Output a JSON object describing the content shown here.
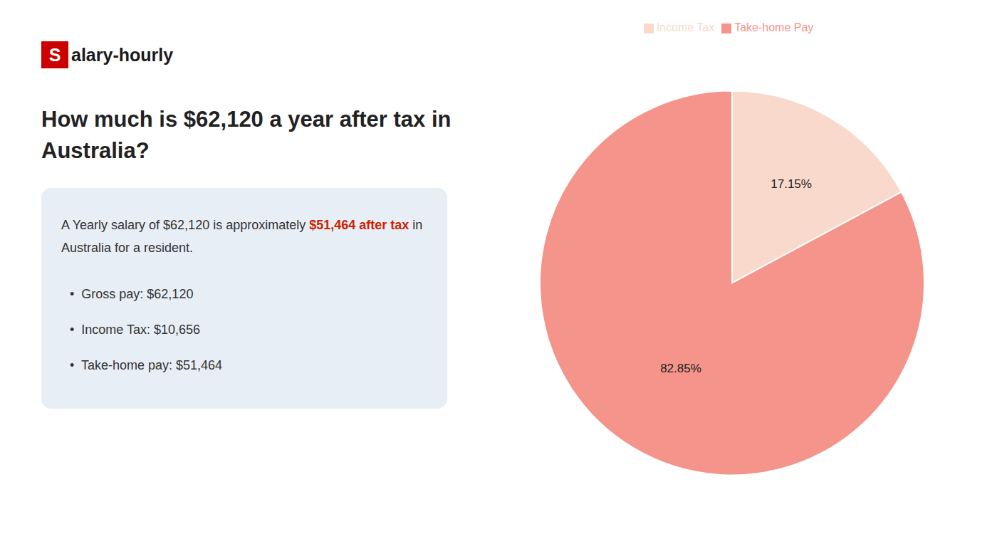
{
  "chart_data": {
    "type": "pie",
    "title": [
      "How much is $62,120 a year after tax in",
      "Australia?"
    ],
    "categories": [
      "Income Tax",
      "Take-home Pay"
    ],
    "values": [
      17.15,
      82.85
    ],
    "value_labels": [
      "17.15%",
      "82.85%"
    ],
    "colors": [
      "#f9d9cc",
      "#f4948a"
    ],
    "data_labels": true,
    "legend": "top",
    "annotations": {
      "logo": [
        {
          "text": "S",
          "color": "#cc0000"
        },
        {
          "text": "alary-hourly"
        }
      ],
      "box_color": "#e8eef5",
      "box": [
        [
          {
            "text": "A Yearly salary of $62,120 is approximately "
          },
          {
            "text": "$51,464 after tax",
            "color": "#cc2200"
          },
          {
            "text": " in"
          }
        ],
        [
          {
            "text": "Australia for a resident."
          }
        ]
      ],
      "bullets": [
        "•  Gross pay: $62,120",
        "•  Income Tax: $10,656",
        "•  Take-home pay: $51,464"
      ]
    }
  }
}
